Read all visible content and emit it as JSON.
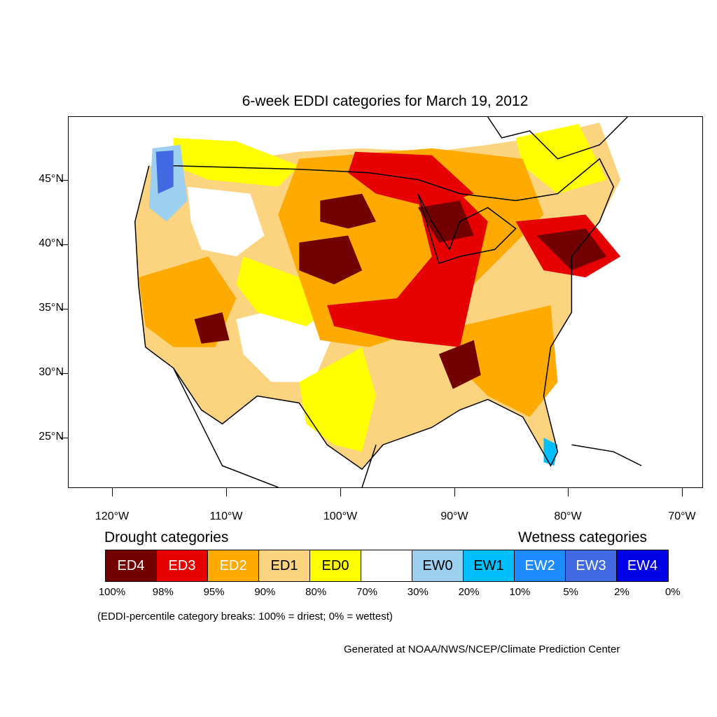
{
  "title": "6-week EDDI categories for March 19, 2012",
  "axes": {
    "lat_labels": [
      "45°N",
      "40°N",
      "35°N",
      "30°N",
      "25°N"
    ],
    "lon_labels": [
      "120°W",
      "110°W",
      "100°W",
      "90°W",
      "80°W",
      "70°W"
    ]
  },
  "legend": {
    "drought_heading": "Drought categories",
    "wetness_heading": "Wetness categories",
    "categories": [
      {
        "label": "ED4",
        "color": "#730000",
        "text_color": "#ffffff"
      },
      {
        "label": "ED3",
        "color": "#e60000",
        "text_color": "#ffffff"
      },
      {
        "label": "ED2",
        "color": "#ffaa00",
        "text_color": "#ffffff"
      },
      {
        "label": "ED1",
        "color": "#fcd37f",
        "text_color": "#000000"
      },
      {
        "label": "ED0",
        "color": "#ffff00",
        "text_color": "#000000"
      },
      {
        "label": "",
        "color": "#ffffff",
        "text_color": "#000000"
      },
      {
        "label": "EW0",
        "color": "#9dcff0",
        "text_color": "#000000"
      },
      {
        "label": "EW1",
        "color": "#00bfff",
        "text_color": "#000000"
      },
      {
        "label": "EW2",
        "color": "#1e8cff",
        "text_color": "#ffffff"
      },
      {
        "label": "EW3",
        "color": "#4169e1",
        "text_color": "#ffffff"
      },
      {
        "label": "EW4",
        "color": "#0000e6",
        "text_color": "#ffffff"
      }
    ],
    "breaks": [
      "100%",
      "98%",
      "95%",
      "90%",
      "80%",
      "70%",
      "30%",
      "20%",
      "10%",
      "5%",
      "2%",
      "0%"
    ],
    "note": "(EDDI-percentile category breaks: 100% = driest; 0% = wettest)"
  },
  "credit": "Generated at NOAA/NWS/NCEP/Climate Prediction Center"
}
